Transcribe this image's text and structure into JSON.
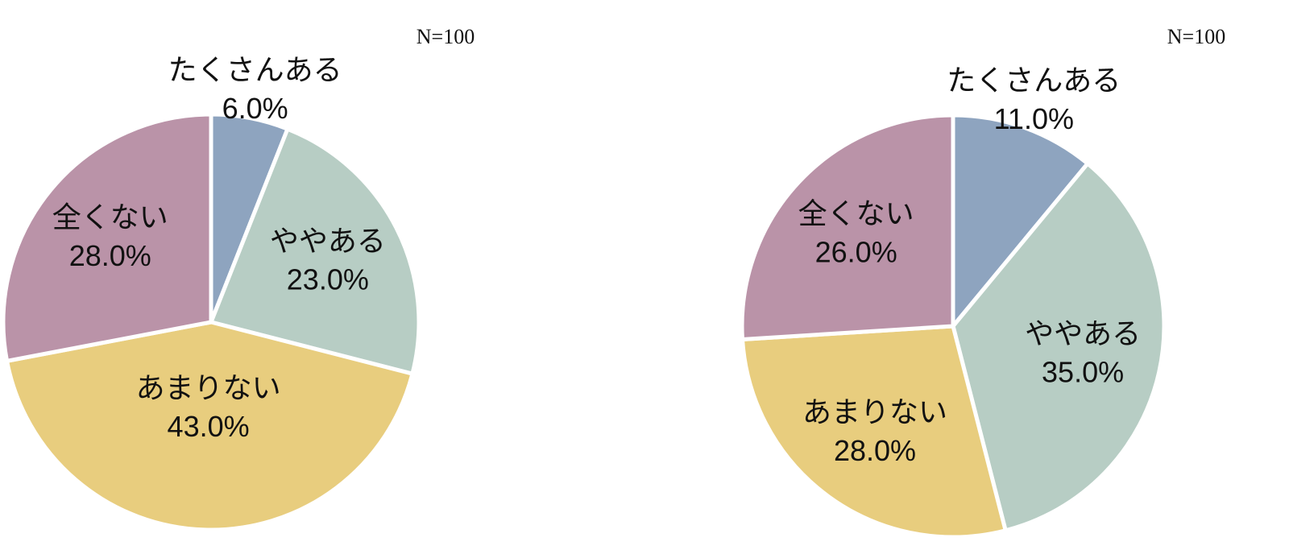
{
  "chart_data": [
    {
      "type": "pie",
      "annotation": "N=100",
      "categories": [
        "たくさんある",
        "ややある",
        "あまりない",
        "全くない"
      ],
      "values": [
        6.0,
        23.0,
        43.0,
        28.0
      ],
      "value_labels": [
        "6.0%",
        "23.0%",
        "43.0%",
        "28.0%"
      ],
      "colors": [
        "#8ea4bf",
        "#b7cdc4",
        "#e8cd7e",
        "#ba93a8"
      ]
    },
    {
      "type": "pie",
      "annotation": "N=100",
      "categories": [
        "たくさんある",
        "ややある",
        "あまりない",
        "全くない"
      ],
      "values": [
        11.0,
        35.0,
        28.0,
        26.0
      ],
      "value_labels": [
        "11.0%",
        "35.0%",
        "28.0%",
        "26.0%"
      ],
      "colors": [
        "#8ea4bf",
        "#b7cdc4",
        "#e8cd7e",
        "#ba93a8"
      ]
    }
  ]
}
